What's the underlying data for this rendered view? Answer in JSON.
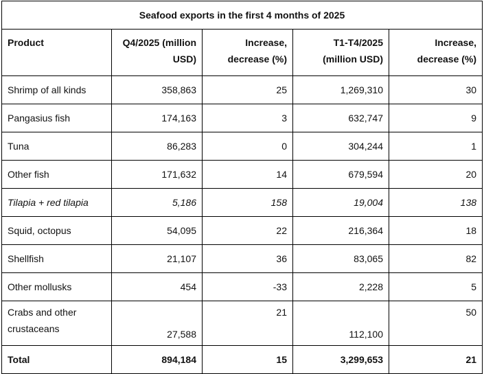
{
  "table": {
    "title": "Seafood exports in the first 4 months of 2025",
    "headers": [
      "Product",
      "Q4/2025 (million USD)",
      "Increase, decrease (%)",
      "T1-T4/2025 (million USD)",
      "Increase, decrease (%)"
    ],
    "rows": [
      [
        "Shrimp of all kinds",
        "358,863",
        "25",
        "1,269,310",
        "30"
      ],
      [
        "Pangasius fish",
        "174,163",
        "3",
        "632,747",
        "9"
      ],
      [
        "Tuna",
        "86,283",
        "0",
        "304,244",
        "1"
      ],
      [
        "Other fish",
        "171,632",
        "14",
        "679,594",
        "20"
      ],
      [
        "Tilapia + red tilapia",
        "5,186",
        "158",
        "19,004",
        "138"
      ],
      [
        "Squid, octopus",
        "54,095",
        "22",
        "216,364",
        "18"
      ],
      [
        "Shellfish",
        "21,107",
        "36",
        "83,065",
        "82"
      ],
      [
        "Other mollusks",
        "454",
        "-33",
        "2,228",
        "5"
      ],
      [
        "Crabs and other crustaceans",
        "27,588",
        "21",
        "112,100",
        "50"
      ]
    ],
    "total": [
      "Total",
      "894,184",
      "15",
      "3,299,653",
      "21"
    ]
  }
}
